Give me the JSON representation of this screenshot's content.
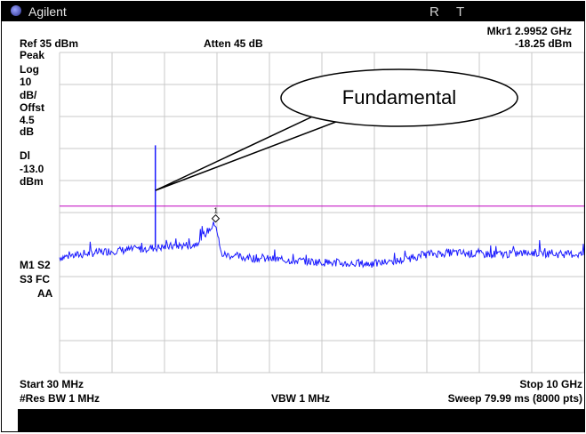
{
  "window": {
    "brand": "Agilent",
    "indicator_r": "R",
    "indicator_t": "T"
  },
  "header": {
    "marker_line1": "Mkr1  2.9952 GHz",
    "ref_level": "Ref 35 dBm",
    "attenuation": "Atten 45 dB",
    "marker_line2": "-18.25 dBm"
  },
  "left_panel": {
    "detector": "Peak",
    "scale_type": "Log",
    "scale_value": "10",
    "scale_unit": "dB/",
    "offset_label": "Offst",
    "offset_value": "4.5",
    "offset_unit": "dB",
    "display_line_label": "Dl",
    "display_line_value": "-13.0",
    "display_line_unit": "dBm",
    "status_row1": "M1  S2",
    "status_row2": "S3  FC",
    "status_row3": "AA"
  },
  "footer": {
    "start_freq": "Start 30 MHz",
    "stop_freq": "Stop 10 GHz",
    "res_bw": "#Res BW 1 MHz",
    "vbw": "VBW 1 MHz",
    "sweep": "Sweep 79.99 ms (8000 pts)"
  },
  "annotation": {
    "callout_text": "Fundamental",
    "marker_index": "1"
  },
  "colors": {
    "trace": "#1a1aff",
    "display_line": "#c000c0",
    "grid": "#c8c8c8"
  },
  "chart_data": {
    "type": "line",
    "title": "",
    "xlabel": "",
    "ylabel": "",
    "x_range_ghz": [
      0.03,
      10.0
    ],
    "y_range_dbm": [
      -65,
      35
    ],
    "grid": true,
    "display_line_dbm": -13.0,
    "marker": {
      "x_ghz": 2.9952,
      "y_dbm": -18.25
    },
    "fundamental": {
      "x_ghz": 1.85,
      "y_dbm": 6.0
    },
    "series": [
      {
        "x_ghz": [
          0.03,
          0.5,
          1.0,
          1.5,
          1.85,
          2.2,
          2.6,
          2.9952,
          3.1,
          3.5,
          4.0,
          4.5,
          5.0,
          5.5,
          6.0,
          6.5,
          7.0,
          7.5,
          8.0,
          8.5,
          9.0,
          9.5,
          10.0
        ],
        "y_dbm": [
          -29,
          -28,
          -27,
          -26.5,
          -26,
          -25.5,
          -25,
          -18.25,
          -28,
          -29,
          -29.5,
          -30,
          -30.5,
          -31,
          -31,
          -30,
          -28,
          -27.5,
          -28,
          -28,
          -27.5,
          -28,
          -28
        ]
      }
    ]
  }
}
